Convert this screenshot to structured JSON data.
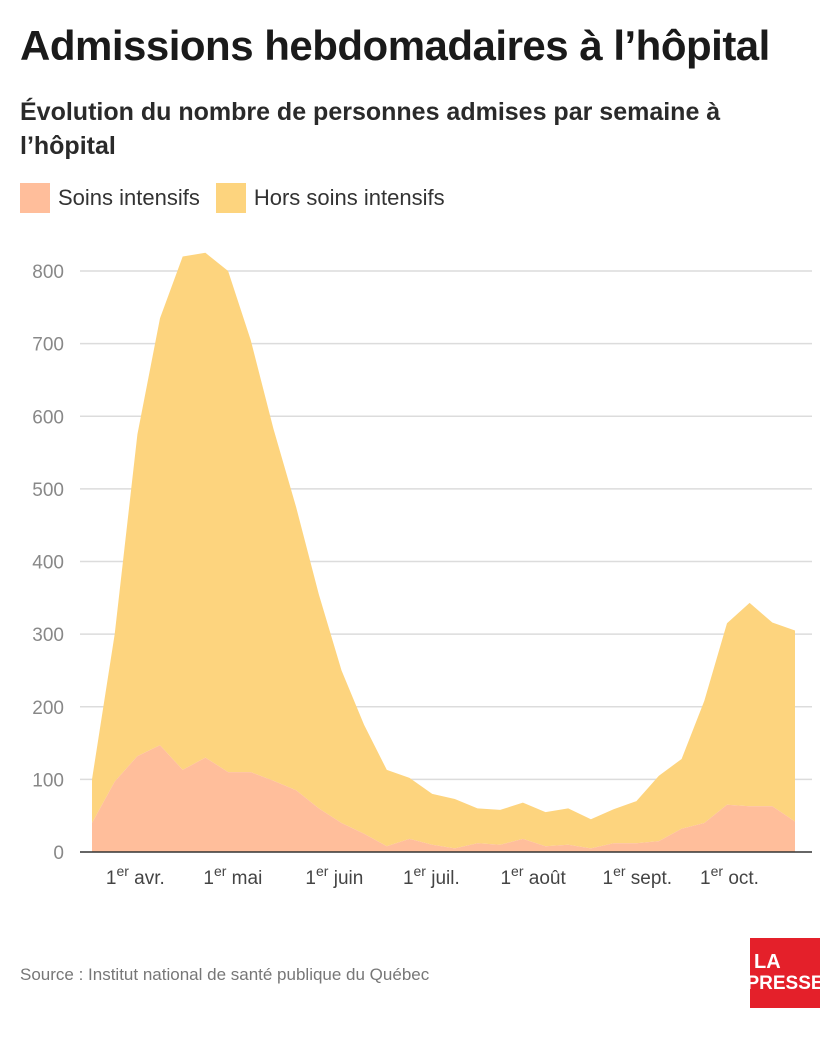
{
  "header": {
    "title": "Admissions hebdomadaires à l’hôpital",
    "subtitle": "Évolution du nombre de personnes admises par semaine à l’hôpital"
  },
  "legend": {
    "items": [
      {
        "label": "Soins intensifs",
        "color": "#ffbe9b"
      },
      {
        "label": "Hors soins intensifs",
        "color": "#fdd47e"
      }
    ]
  },
  "source": "Source : Institut national de santé publique du Québec",
  "logo": {
    "line1": "LA",
    "line2": "PRESSE",
    "color": "#e4202a"
  },
  "chart_data": {
    "type": "area",
    "stacked": true,
    "title": "Admissions hebdomadaires à l’hôpital",
    "subtitle": "Évolution du nombre de personnes admises par semaine à l’hôpital",
    "xlabel": "",
    "ylabel": "",
    "ylim": [
      0,
      800
    ],
    "yticks": [
      0,
      100,
      200,
      300,
      400,
      500,
      600,
      700,
      800
    ],
    "grid": true,
    "legend_position": "top-left",
    "x_tick_labels": [
      {
        "label": "1er avr.",
        "base": "1",
        "sup": "er",
        "rest": " avr.",
        "week": 0.7
      },
      {
        "label": "1er mai",
        "base": "1",
        "sup": "er",
        "rest": " mai",
        "week": 5
      },
      {
        "label": "1er juin",
        "base": "1",
        "sup": "er",
        "rest": " juin",
        "week": 9.5
      },
      {
        "label": "1er juil.",
        "base": "1",
        "sup": "er",
        "rest": " juil.",
        "week": 13.8
      },
      {
        "label": "1er août",
        "base": "1",
        "sup": "er",
        "rest": " août",
        "week": 18.1
      },
      {
        "label": "1er sept.",
        "base": "1",
        "sup": "er",
        "rest": " sept.",
        "week": 22.6
      },
      {
        "label": "1er oct.",
        "base": "1",
        "sup": "er",
        "rest": " oct.",
        "week": 26.9
      }
    ],
    "weeks": [
      0,
      1,
      2,
      3,
      4,
      5,
      6,
      7,
      8,
      9,
      10,
      11,
      12,
      13,
      14,
      15,
      16,
      17,
      18,
      19,
      20,
      21,
      22,
      23,
      24,
      25,
      26,
      27,
      28,
      29,
      30,
      31
    ],
    "series": [
      {
        "name": "Soins intensifs",
        "color": "#ffbe9b",
        "values": [
          40,
          97,
          132,
          147,
          113,
          130,
          110,
          110,
          98,
          85,
          60,
          40,
          25,
          8,
          18,
          10,
          5,
          12,
          10,
          18,
          8,
          10,
          5,
          12,
          12,
          15,
          32,
          40,
          65,
          63,
          63,
          42
        ]
      },
      {
        "name": "Hors soins intensifs",
        "color": "#fdd47e",
        "values": [
          60,
          203,
          443,
          588,
          707,
          695,
          690,
          595,
          485,
          390,
          295,
          210,
          150,
          105,
          84,
          70,
          68,
          48,
          48,
          50,
          47,
          50,
          40,
          47,
          58,
          90,
          96,
          168,
          250,
          280,
          253,
          263
        ]
      }
    ]
  }
}
